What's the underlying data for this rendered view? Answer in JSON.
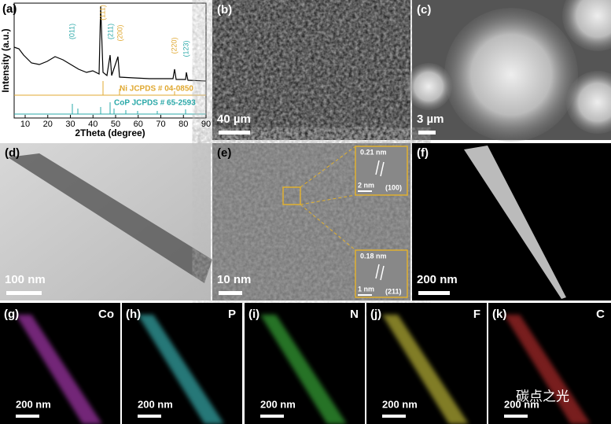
{
  "xrd": {
    "label": "(a)",
    "y_axis": "Intensity (a.u.)",
    "x_axis": "2Theta (degree)",
    "xticks": [
      10,
      20,
      30,
      40,
      50,
      60,
      70,
      80,
      90
    ],
    "peaks": [
      "(011)",
      "(111)",
      "(211)",
      "(200)",
      "(220)",
      "(123)"
    ],
    "references": [
      "Ni JCPDS # 04-0850",
      "CoP JCPDS # 65-2593"
    ]
  },
  "images": [
    {
      "label": "(b)",
      "scale": "40 µm"
    },
    {
      "label": "(c)",
      "scale": "3 µm"
    },
    {
      "label": "(d)",
      "scale": "100 nm"
    },
    {
      "label": "(e)",
      "scale": "10 nm"
    },
    {
      "label": "(f)",
      "scale": "200 nm"
    }
  ],
  "insets": [
    {
      "spacing": "0.21 nm",
      "scale": "2 nm",
      "plane": "(100)"
    },
    {
      "spacing": "0.18 nm",
      "scale": "1 nm",
      "plane": "(211)"
    }
  ],
  "maps": [
    {
      "label": "(g)",
      "element": "Co",
      "scale": "200 nm"
    },
    {
      "label": "(h)",
      "element": "P",
      "scale": "200 nm"
    },
    {
      "label": "(i)",
      "element": "N",
      "scale": "200 nm"
    },
    {
      "label": "(j)",
      "element": "F",
      "scale": "200 nm"
    },
    {
      "label": "(k)",
      "element": "C",
      "scale": "200 nm"
    }
  ],
  "watermark": "碳点之光"
}
